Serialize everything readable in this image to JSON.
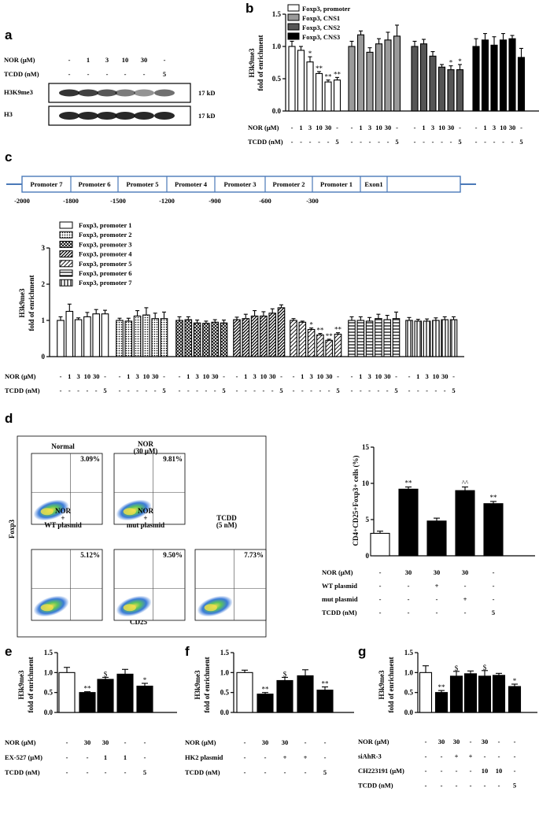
{
  "panel_labels": [
    "a",
    "b",
    "c",
    "d",
    "e",
    "f",
    "g"
  ],
  "panel_a": {
    "conditions": [
      {
        "label": "NOR (μM)",
        "values": [
          "-",
          "1",
          "3",
          "10",
          "30",
          "-"
        ]
      },
      {
        "label": "TCDD (nM)",
        "values": [
          "-",
          "-",
          "-",
          "-",
          "-",
          "5"
        ]
      }
    ],
    "blots": [
      {
        "label": "H3K9me3",
        "size": "17 kD"
      },
      {
        "label": "H3",
        "size": "17 kD"
      }
    ]
  },
  "panel_b": {
    "conditions": [
      {
        "label": "NOR (μM)",
        "values": [
          "-",
          "1",
          "3",
          "10",
          "30",
          "-"
        ]
      },
      {
        "label": "TCDD (nM)",
        "values": [
          "-",
          "-",
          "-",
          "-",
          "-",
          "5"
        ]
      }
    ],
    "chart_data": {
      "type": "bar",
      "ylabel_lines": [
        "H3k9me3",
        "fold of enrichment"
      ],
      "ylim": [
        0,
        1.5
      ],
      "yticks": [
        "0.0",
        "0.5",
        "1.0",
        "1.5"
      ],
      "legend": [
        "Foxp3, promoter",
        "Foxp3, CNS1",
        "Foxp3, CNS2",
        "Foxp3, CNS3"
      ],
      "colors": [
        "#ffffff",
        "#9a9a9a",
        "#555555",
        "#000000"
      ],
      "series": [
        {
          "name": "Foxp3, promoter",
          "values": [
            1.0,
            0.94,
            0.76,
            0.58,
            0.45,
            0.48
          ],
          "errors": [
            0.08,
            0.06,
            0.08,
            0.03,
            0.03,
            0.04
          ],
          "marks": [
            "",
            "",
            "*",
            "**",
            "**",
            "**"
          ]
        },
        {
          "name": "Foxp3, CNS1",
          "values": [
            1.0,
            1.18,
            0.91,
            1.04,
            1.1,
            1.16
          ],
          "errors": [
            0.08,
            0.06,
            0.07,
            0.08,
            0.12,
            0.17
          ],
          "marks": [
            "",
            "",
            "",
            "",
            "",
            ""
          ]
        },
        {
          "name": "Foxp3, CNS2",
          "values": [
            1.0,
            1.04,
            0.85,
            0.68,
            0.64,
            0.64
          ],
          "errors": [
            0.08,
            0.07,
            0.07,
            0.04,
            0.06,
            0.08
          ],
          "marks": [
            "",
            "",
            "",
            "",
            "*",
            "*"
          ]
        },
        {
          "name": "Foxp3, CNS3",
          "values": [
            1.0,
            1.1,
            1.02,
            1.1,
            1.12,
            0.83
          ],
          "errors": [
            0.12,
            0.1,
            0.13,
            0.1,
            0.05,
            0.14
          ],
          "marks": [
            "",
            "",
            "",
            "",
            "",
            ""
          ]
        }
      ]
    }
  },
  "panel_c": {
    "map": {
      "segments": [
        "Promoter 7",
        "Promoter 6",
        "Promoter 5",
        "Promoter 4",
        "Promoter 3",
        "Promoter 2",
        "Promoter 1",
        "Exon1"
      ],
      "positions": [
        "-2000",
        "-1800",
        "-1500",
        "-1200",
        "-900",
        "-600",
        "-300"
      ]
    },
    "conditions": [
      {
        "label": "NOR (μM)",
        "values": [
          "-",
          "1",
          "3",
          "10",
          "30",
          "-"
        ]
      },
      {
        "label": "TCDD (nM)",
        "values": [
          "-",
          "-",
          "-",
          "-",
          "-",
          "5"
        ]
      }
    ],
    "chart_data": {
      "type": "bar",
      "ylabel_lines": [
        "H3k9me3",
        "fold of enrichment"
      ],
      "ylim": [
        0,
        3
      ],
      "yticks": [
        "0",
        "1",
        "2",
        "3"
      ],
      "legend": [
        "Foxp3, promoter 1",
        "Foxp3, promoter 2",
        "Foxp3, promoter 3",
        "Foxp3, promoter 4",
        "Foxp3, promoter 5",
        "Foxp3, promoter 6",
        "Foxp3, promoter 7"
      ],
      "patterns": [
        "solid",
        "dots",
        "cross",
        "diag",
        "diag2",
        "hline",
        "vline"
      ],
      "series": [
        {
          "name": "Foxp3, promoter 1",
          "values": [
            1.0,
            1.25,
            1.02,
            1.1,
            1.18,
            1.18
          ],
          "errors": [
            0.1,
            0.2,
            0.05,
            0.12,
            0.12,
            0.1
          ],
          "marks": [
            "",
            "",
            "",
            "",
            "",
            ""
          ]
        },
        {
          "name": "Foxp3, promoter 2",
          "values": [
            1.0,
            0.98,
            1.12,
            1.15,
            1.05,
            1.05
          ],
          "errors": [
            0.06,
            0.08,
            0.15,
            0.2,
            0.15,
            0.18
          ],
          "marks": [
            "",
            "",
            "",
            "",
            "",
            ""
          ]
        },
        {
          "name": "Foxp3, promoter 3",
          "values": [
            1.0,
            1.02,
            0.93,
            0.92,
            0.95,
            0.93
          ],
          "errors": [
            0.1,
            0.08,
            0.08,
            0.06,
            0.07,
            0.08
          ],
          "marks": [
            "",
            "",
            "",
            "",
            "",
            ""
          ]
        },
        {
          "name": "Foxp3, promoter 4",
          "values": [
            1.02,
            1.05,
            1.12,
            1.12,
            1.2,
            1.35
          ],
          "errors": [
            0.07,
            0.12,
            0.15,
            0.12,
            0.12,
            0.08
          ],
          "marks": [
            "",
            "",
            "",
            "",
            "",
            ""
          ]
        },
        {
          "name": "Foxp3, promoter 5",
          "values": [
            1.0,
            0.95,
            0.75,
            0.6,
            0.45,
            0.62
          ],
          "errors": [
            0.05,
            0.03,
            0.04,
            0.04,
            0.03,
            0.04
          ],
          "marks": [
            "",
            "",
            "*",
            "**",
            "**",
            "**"
          ]
        },
        {
          "name": "Foxp3, promoter 6",
          "values": [
            1.0,
            1.0,
            0.98,
            1.05,
            1.02,
            1.05
          ],
          "errors": [
            0.1,
            0.1,
            0.1,
            0.12,
            0.12,
            0.18
          ],
          "marks": [
            "",
            "",
            "",
            "",
            "",
            ""
          ]
        },
        {
          "name": "Foxp3, promoter 7",
          "values": [
            1.0,
            0.98,
            0.98,
            1.0,
            1.02,
            1.02
          ],
          "errors": [
            0.08,
            0.05,
            0.06,
            0.07,
            0.08,
            0.08
          ],
          "marks": [
            "",
            "",
            "",
            "",
            "",
            ""
          ]
        }
      ]
    }
  },
  "panel_d": {
    "flow": {
      "x_axis_label": "CD25",
      "y_axis_label": "Foxp3",
      "plots": [
        {
          "title_lines": [
            "Normal"
          ],
          "percent": "3.09%"
        },
        {
          "title_lines": [
            "NOR",
            "(30 μM)"
          ],
          "percent": "9.81%"
        },
        {
          "title_lines": [
            "NOR",
            "+",
            "WT plasmid"
          ],
          "percent": "5.12%"
        },
        {
          "title_lines": [
            "NOR",
            "+",
            "mut plasmid"
          ],
          "percent": "9.50%"
        },
        {
          "title_lines": [
            "TCDD",
            "(5 nM)"
          ],
          "percent": "7.73%"
        }
      ]
    },
    "conditions": [
      {
        "label": "NOR (μM)",
        "values": [
          "-",
          "30",
          "30",
          "30",
          "-"
        ]
      },
      {
        "label": "WT plasmid",
        "values": [
          "-",
          "-",
          "+",
          "-",
          "-"
        ]
      },
      {
        "label": "mut plasmid",
        "values": [
          "-",
          "-",
          "-",
          "+",
          "-"
        ]
      },
      {
        "label": "TCDD (nM)",
        "values": [
          "-",
          "-",
          "-",
          "-",
          "5"
        ]
      }
    ],
    "chart_data": {
      "type": "bar",
      "ylabel": "CD4+CD25+Foxp3+ cells (%)",
      "ylim": [
        0,
        15
      ],
      "yticks": [
        "0",
        "5",
        "10",
        "15"
      ],
      "values": [
        3.1,
        9.2,
        4.8,
        9.0,
        7.2
      ],
      "errors": [
        0.3,
        0.3,
        0.4,
        0.5,
        0.3
      ],
      "fills": [
        "#ffffff",
        "#000000",
        "#000000",
        "#000000",
        "#000000"
      ],
      "marks": [
        "",
        "**",
        "",
        "^^",
        "**"
      ]
    }
  },
  "panel_e": {
    "conditions": [
      {
        "label": "NOR (μM)",
        "values": [
          "-",
          "30",
          "30",
          "-",
          "-"
        ]
      },
      {
        "label": "EX-527 (μM)",
        "values": [
          "-",
          "-",
          "1",
          "1",
          "-"
        ]
      },
      {
        "label": "TCDD (nM)",
        "values": [
          "-",
          "-",
          "-",
          "-",
          "5"
        ]
      }
    ],
    "chart_data": {
      "type": "bar",
      "ylabel_lines": [
        "H3k9me3",
        "fold of enrichment"
      ],
      "ylim": [
        0,
        1.5
      ],
      "yticks": [
        "0.0",
        "0.5",
        "1.0",
        "1.5"
      ],
      "values": [
        1.0,
        0.5,
        0.83,
        0.96,
        0.66
      ],
      "errors": [
        0.13,
        0.02,
        0.05,
        0.12,
        0.07
      ],
      "fills": [
        "#ffffff",
        "#000000",
        "#000000",
        "#000000",
        "#000000"
      ],
      "marks": [
        "",
        "**",
        "$",
        "",
        "*"
      ]
    }
  },
  "panel_f": {
    "conditions": [
      {
        "label": "NOR (μM)",
        "values": [
          "-",
          "30",
          "30",
          "-",
          "-"
        ]
      },
      {
        "label": "HK2 plasmid",
        "values": [
          "-",
          "-",
          "+",
          "+",
          "-"
        ]
      },
      {
        "label": "TCDD (nM)",
        "values": [
          "-",
          "-",
          "-",
          "-",
          "5"
        ]
      }
    ],
    "chart_data": {
      "type": "bar",
      "ylabel_lines": [
        "H3k9me3",
        "fold of enrichment"
      ],
      "ylim": [
        0,
        1.5
      ],
      "yticks": [
        "0.0",
        "0.5",
        "1.0",
        "1.5"
      ],
      "values": [
        1.0,
        0.46,
        0.8,
        0.92,
        0.56
      ],
      "errors": [
        0.06,
        0.04,
        0.08,
        0.15,
        0.08
      ],
      "fills": [
        "#ffffff",
        "#000000",
        "#000000",
        "#000000",
        "#000000"
      ],
      "marks": [
        "",
        "**",
        "$",
        "",
        "**"
      ]
    }
  },
  "panel_g": {
    "conditions": [
      {
        "label": "NOR (μM)",
        "values": [
          "-",
          "30",
          "30",
          "-",
          "30",
          "-",
          "-"
        ]
      },
      {
        "label": "siAhR-3",
        "values": [
          "-",
          "-",
          "+",
          "+",
          "-",
          "-",
          "-"
        ]
      },
      {
        "label": "CH223191 (μM)",
        "values": [
          "-",
          "-",
          "-",
          "-",
          "10",
          "10",
          "-"
        ]
      },
      {
        "label": "TCDD (nM)",
        "values": [
          "-",
          "-",
          "-",
          "-",
          "-",
          "-",
          "5"
        ]
      }
    ],
    "chart_data": {
      "type": "bar",
      "ylabel_lines": [
        "H3k9me3",
        "fold of enrichment"
      ],
      "ylim": [
        0,
        1.5
      ],
      "yticks": [
        "0.0",
        "0.5",
        "1.0",
        "1.5"
      ],
      "values": [
        1.0,
        0.5,
        0.91,
        0.97,
        0.91,
        0.93,
        0.65
      ],
      "errors": [
        0.17,
        0.05,
        0.12,
        0.07,
        0.14,
        0.05,
        0.06
      ],
      "fills": [
        "#ffffff",
        "#000000",
        "#000000",
        "#000000",
        "#000000",
        "#000000",
        "#000000"
      ],
      "marks": [
        "",
        "**",
        "$",
        "",
        "$",
        "",
        "*"
      ]
    }
  }
}
